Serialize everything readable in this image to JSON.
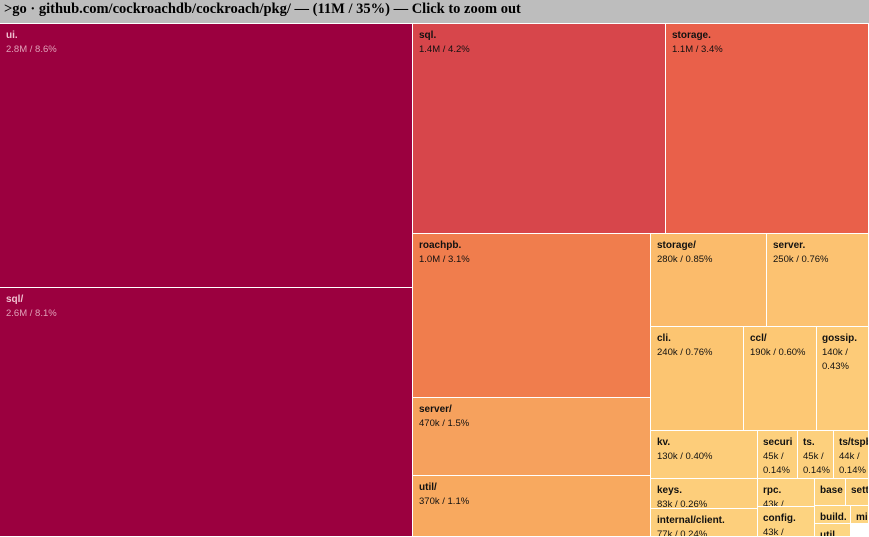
{
  "header": {
    "title": ">go · github.com/cockroachdb/cockroach/pkg/ — (11M / 35%) — Click to zoom out"
  },
  "nodes": [
    {
      "label": "ui.",
      "size": "2.8M / 8.6%"
    },
    {
      "label": "sql/",
      "size": "2.6M / 8.1%"
    },
    {
      "label": "sql.",
      "size": "1.4M / 4.2%"
    },
    {
      "label": "storage.",
      "size": "1.1M / 3.4%"
    },
    {
      "label": "roachpb.",
      "size": "1.0M / 3.1%"
    },
    {
      "label": "server/",
      "size": "470k / 1.5%"
    },
    {
      "label": "util/",
      "size": "370k / 1.1%"
    },
    {
      "label": "storage/",
      "size": "280k / 0.85%"
    },
    {
      "label": "server.",
      "size": "250k / 0.76%"
    },
    {
      "label": "cli.",
      "size": "240k / 0.76%"
    },
    {
      "label": "ccl/",
      "size": "190k / 0.60%"
    },
    {
      "label": "gossip.",
      "size": "140k / 0.43%"
    },
    {
      "label": "kv.",
      "size": "130k / 0.40%"
    },
    {
      "label": "securi",
      "size": "45k / 0.14%"
    },
    {
      "label": "ts.",
      "size": "45k / 0.14%"
    },
    {
      "label": "ts/tspb",
      "size": "44k / 0.14%"
    },
    {
      "label": "keys.",
      "size": "83k / 0.26%"
    },
    {
      "label": "rpc.",
      "size": "43k /"
    },
    {
      "label": "base"
    },
    {
      "label": "sett"
    },
    {
      "label": "internal/client.",
      "size": "77k / 0.24%"
    },
    {
      "label": "config.",
      "size": "43k /"
    },
    {
      "label": "build."
    },
    {
      "label": "mig"
    },
    {
      "label": "util."
    }
  ]
}
